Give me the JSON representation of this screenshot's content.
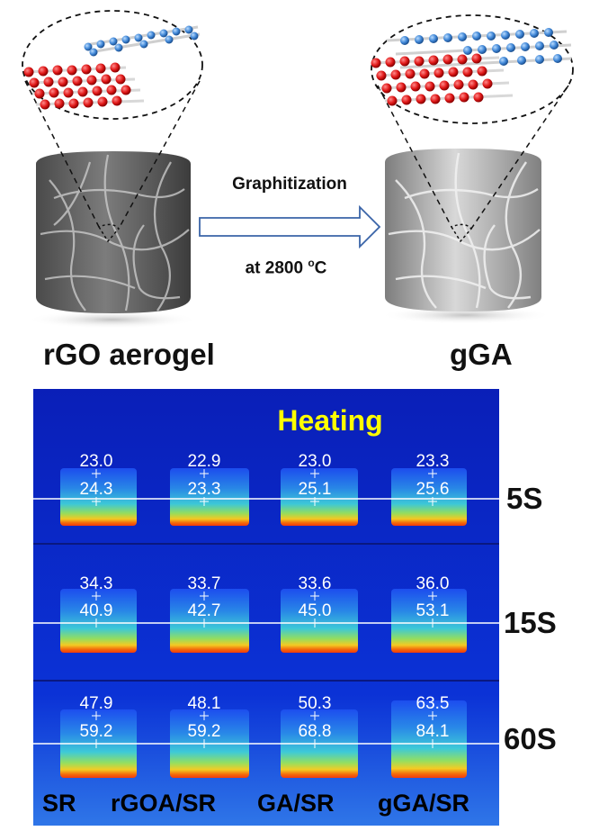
{
  "schematic": {
    "left_label": "rGO aerogel",
    "right_label": "gGA",
    "arrow_top": "Graphitization",
    "arrow_bottom_prefix": "at 2800 ",
    "arrow_bottom_sup": "o",
    "arrow_bottom_suffix": "C"
  },
  "thermal": {
    "title": "Heating",
    "times": [
      "5S",
      "15S",
      "60S"
    ],
    "samples": [
      "SR",
      "rGOA/SR",
      "GA/SR",
      "gGA/SR"
    ],
    "readings": [
      [
        [
          "23.0",
          "24.3"
        ],
        [
          "22.9",
          "23.3"
        ],
        [
          "23.0",
          "25.1"
        ],
        [
          "23.3",
          "25.6"
        ]
      ],
      [
        [
          "34.3",
          "40.9"
        ],
        [
          "33.7",
          "42.7"
        ],
        [
          "33.6",
          "45.0"
        ],
        [
          "36.0",
          "53.1"
        ]
      ],
      [
        [
          "47.9",
          "59.2"
        ],
        [
          "48.1",
          "59.2"
        ],
        [
          "50.3",
          "68.8"
        ],
        [
          "63.5",
          "84.1"
        ]
      ]
    ]
  },
  "colors": {
    "title_yellow": "#ffff00",
    "bg_blue": "#0a2fd6"
  }
}
